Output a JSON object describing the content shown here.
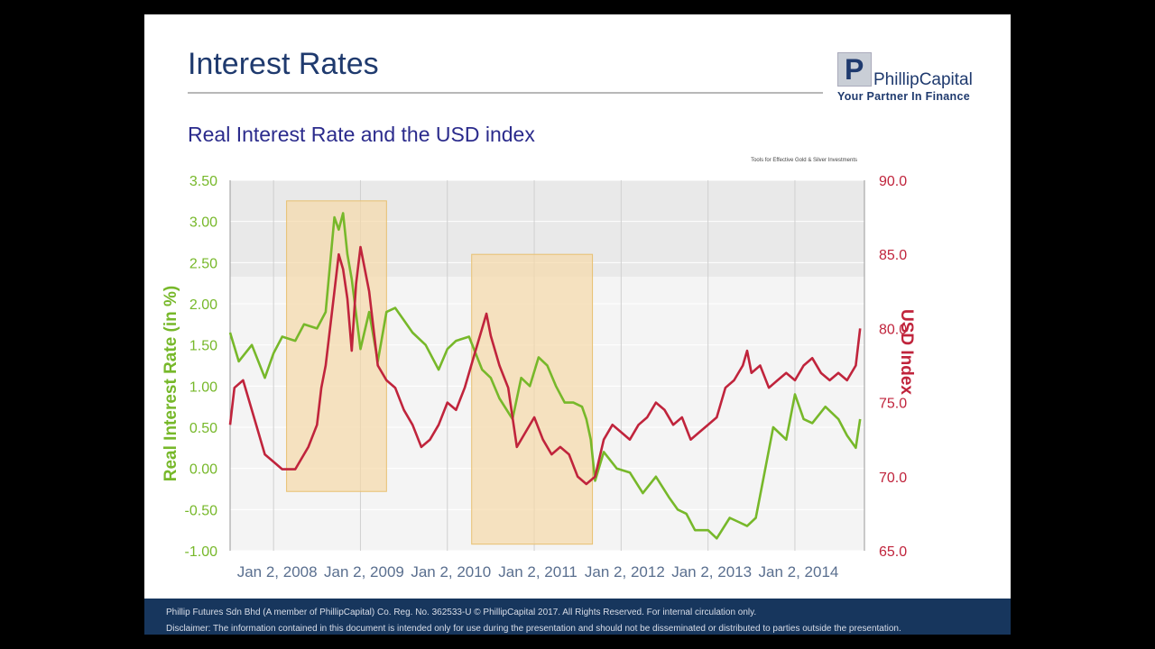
{
  "slide": {
    "title": "Interest Rates",
    "subtitle": "Real Interest Rate and the USD index",
    "logo": {
      "mark": "P",
      "name": "PhillipCapital",
      "tagline": "Your Partner In Finance"
    },
    "source_note": "Tools for Effective Gold & Silver Investments",
    "footer_line1": "Phillip Futures Sdn Bhd (A member of PhillipCapital) Co. Reg. No. 362533-U  © PhillipCapital 2017.  All Rights Reserved.  For internal circulation only.",
    "footer_line2": "Disclaimer: The information contained in this document is intended only for use during the presentation and should not be disseminated or distributed to parties outside the presentation."
  },
  "colors": {
    "real_rate": "#77b82a",
    "usd_index": "#c0243c",
    "highlight": "#f5d9a8",
    "highlight_border": "#e8c070",
    "title": "#1f3a6e",
    "footer_bg": "#17365d"
  },
  "chart_data": {
    "type": "line",
    "ylabel": "Real Interest Rate (in %)",
    "y2label": "USD Index",
    "ylim": [
      -1.0,
      3.5
    ],
    "y2lim": [
      65.0,
      90.0
    ],
    "xlim": [
      2007.5,
      2014.8
    ],
    "y_ticks": [
      "3.50",
      "3.00",
      "2.50",
      "2.00",
      "1.50",
      "1.00",
      "0.50",
      "0.00",
      "-0.50",
      "-1.00"
    ],
    "y2_ticks": [
      "90.0",
      "85.0",
      "80.0",
      "75.0",
      "70.0",
      "65.0"
    ],
    "x_ticks": [
      "Jan 2, 2008",
      "Jan 2, 2009",
      "Jan 2, 2010",
      "Jan 2, 2011",
      "Jan 2, 2012",
      "Jan 2, 2013",
      "Jan 2, 2014"
    ],
    "x_tick_values": [
      2008,
      2009,
      2010,
      2011,
      2012,
      2013,
      2014
    ],
    "highlight_periods": [
      {
        "x0": 2008.15,
        "x1": 2009.3,
        "y0": -0.28,
        "y1": 3.25
      },
      {
        "x0": 2010.28,
        "x1": 2011.67,
        "y0": -0.92,
        "y1": 2.6
      }
    ],
    "series": [
      {
        "name": "Real Interest Rate",
        "axis": "left",
        "x": [
          2007.5,
          2007.6,
          2007.75,
          2007.9,
          2008.0,
          2008.1,
          2008.25,
          2008.35,
          2008.5,
          2008.6,
          2008.7,
          2008.75,
          2008.8,
          2008.85,
          2008.9,
          2009.0,
          2009.1,
          2009.2,
          2009.3,
          2009.4,
          2009.5,
          2009.6,
          2009.75,
          2009.9,
          2010.0,
          2010.1,
          2010.25,
          2010.4,
          2010.5,
          2010.6,
          2010.75,
          2010.85,
          2010.95,
          2011.05,
          2011.15,
          2011.25,
          2011.35,
          2011.45,
          2011.55,
          2011.6,
          2011.65,
          2011.7,
          2011.8,
          2011.95,
          2012.1,
          2012.25,
          2012.4,
          2012.55,
          2012.65,
          2012.75,
          2012.85,
          2013.0,
          2013.1,
          2013.25,
          2013.35,
          2013.45,
          2013.55,
          2013.65,
          2013.75,
          2013.9,
          2014.0,
          2014.1,
          2014.2,
          2014.35,
          2014.5,
          2014.6,
          2014.7,
          2014.75
        ],
        "values": [
          1.65,
          1.3,
          1.5,
          1.1,
          1.4,
          1.6,
          1.55,
          1.75,
          1.7,
          1.9,
          3.05,
          2.9,
          3.1,
          2.6,
          2.3,
          1.45,
          1.9,
          1.3,
          1.9,
          1.95,
          1.8,
          1.65,
          1.5,
          1.2,
          1.45,
          1.55,
          1.6,
          1.2,
          1.1,
          0.85,
          0.6,
          1.1,
          1.0,
          1.35,
          1.25,
          1.0,
          0.8,
          0.8,
          0.75,
          0.6,
          0.35,
          -0.15,
          0.2,
          0.0,
          -0.05,
          -0.3,
          -0.1,
          -0.35,
          -0.5,
          -0.55,
          -0.75,
          -0.75,
          -0.85,
          -0.6,
          -0.65,
          -0.7,
          -0.6,
          -0.05,
          0.5,
          0.35,
          0.9,
          0.6,
          0.55,
          0.75,
          0.6,
          0.4,
          0.25,
          0.6
        ]
      },
      {
        "name": "USD Index",
        "axis": "right",
        "x": [
          2007.5,
          2007.55,
          2007.65,
          2007.8,
          2007.9,
          2008.0,
          2008.1,
          2008.25,
          2008.4,
          2008.5,
          2008.55,
          2008.6,
          2008.7,
          2008.75,
          2008.8,
          2008.85,
          2008.9,
          2008.95,
          2009.0,
          2009.1,
          2009.15,
          2009.2,
          2009.3,
          2009.4,
          2009.5,
          2009.6,
          2009.7,
          2009.8,
          2009.9,
          2010.0,
          2010.1,
          2010.2,
          2010.3,
          2010.4,
          2010.45,
          2010.5,
          2010.6,
          2010.7,
          2010.8,
          2010.9,
          2011.0,
          2011.1,
          2011.2,
          2011.3,
          2011.4,
          2011.5,
          2011.6,
          2011.7,
          2011.8,
          2011.9,
          2012.0,
          2012.1,
          2012.2,
          2012.3,
          2012.4,
          2012.5,
          2012.6,
          2012.7,
          2012.8,
          2012.9,
          2013.0,
          2013.1,
          2013.2,
          2013.3,
          2013.4,
          2013.45,
          2013.5,
          2013.6,
          2013.7,
          2013.8,
          2013.9,
          2014.0,
          2014.1,
          2014.2,
          2014.3,
          2014.4,
          2014.5,
          2014.6,
          2014.7,
          2014.75
        ],
        "values": [
          73.5,
          76.0,
          76.5,
          73.5,
          71.5,
          71.0,
          70.5,
          70.5,
          72.0,
          73.5,
          76.0,
          77.5,
          82.5,
          85.0,
          84.0,
          82.0,
          78.5,
          83.0,
          85.5,
          82.5,
          80.0,
          77.5,
          76.5,
          76.0,
          74.5,
          73.5,
          72.0,
          72.5,
          73.5,
          75.0,
          74.5,
          76.0,
          78.0,
          80.0,
          81.0,
          79.5,
          77.5,
          76.0,
          72.0,
          73.0,
          74.0,
          72.5,
          71.5,
          72.0,
          71.5,
          70.0,
          69.5,
          70.0,
          72.5,
          73.5,
          73.0,
          72.5,
          73.5,
          74.0,
          75.0,
          74.5,
          73.5,
          74.0,
          72.5,
          73.0,
          73.5,
          74.0,
          76.0,
          76.5,
          77.5,
          78.5,
          77.0,
          77.5,
          76.0,
          76.5,
          77.0,
          76.5,
          77.5,
          78.0,
          77.0,
          76.5,
          77.0,
          76.5,
          77.5,
          80.0
        ]
      }
    ]
  }
}
